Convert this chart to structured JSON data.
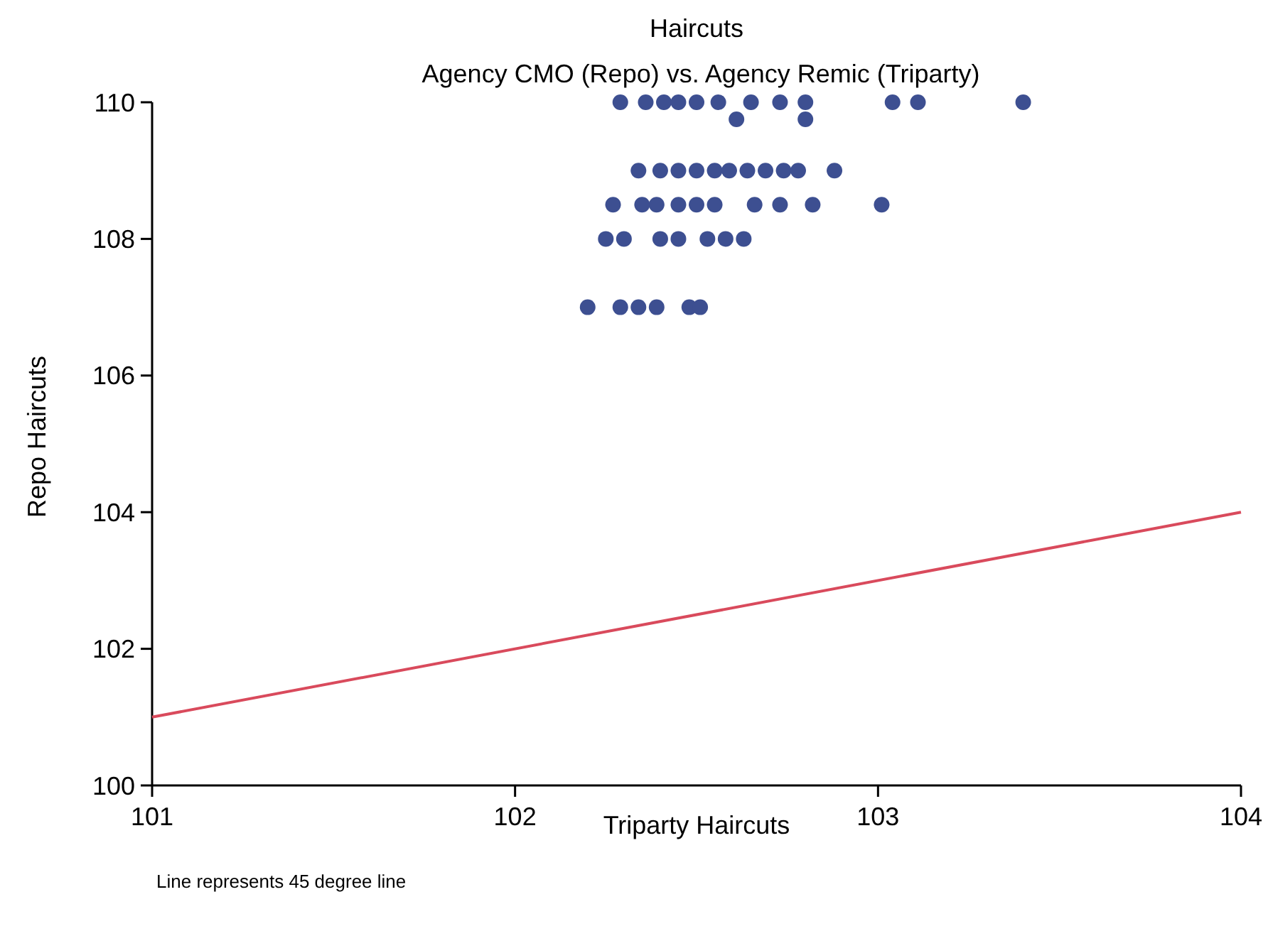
{
  "chart_data": {
    "type": "scatter",
    "title": "Haircuts",
    "subtitle": "Agency CMO (Repo) vs. Agency Remic (Triparty)",
    "xlabel": "Triparty Haircuts",
    "ylabel": "Repo Haircuts",
    "annotations": [
      "Line represents 45 degree line"
    ],
    "xlim": [
      101,
      104
    ],
    "xticks": [
      101,
      102,
      103,
      104
    ],
    "ylim": [
      100,
      110
    ],
    "yticks": [
      100,
      102,
      104,
      106,
      108,
      110
    ],
    "grid": false,
    "series": [
      {
        "marker": "circle",
        "color": "#3d4f91",
        "x": [
          102.29,
          102.36,
          102.41,
          102.45,
          102.5,
          102.56,
          102.65,
          102.73,
          102.8,
          103.04,
          103.11,
          103.4,
          102.61,
          102.8,
          102.34,
          102.4,
          102.45,
          102.5,
          102.55,
          102.59,
          102.64,
          102.69,
          102.74,
          102.78,
          102.88,
          102.27,
          102.35,
          102.39,
          102.45,
          102.5,
          102.55,
          102.66,
          102.73,
          102.82,
          103.01,
          102.25,
          102.3,
          102.4,
          102.45,
          102.53,
          102.58,
          102.63,
          102.2,
          102.29,
          102.34,
          102.39,
          102.48,
          102.51
        ],
        "values": [
          110,
          110,
          110,
          110,
          110,
          110,
          110,
          110,
          110,
          110,
          110,
          110,
          109.75,
          109.75,
          109,
          109,
          109,
          109,
          109,
          109,
          109,
          109,
          109,
          109,
          109,
          108.5,
          108.5,
          108.5,
          108.5,
          108.5,
          108.5,
          108.5,
          108.5,
          108.5,
          108.5,
          108,
          108,
          108,
          108,
          108,
          108,
          108,
          107,
          107,
          107,
          107,
          107,
          107
        ]
      },
      {
        "type": "line",
        "color": "#d94a5c",
        "x": [
          101,
          104
        ],
        "values": [
          101,
          104
        ],
        "line_style": "solid"
      }
    ]
  }
}
